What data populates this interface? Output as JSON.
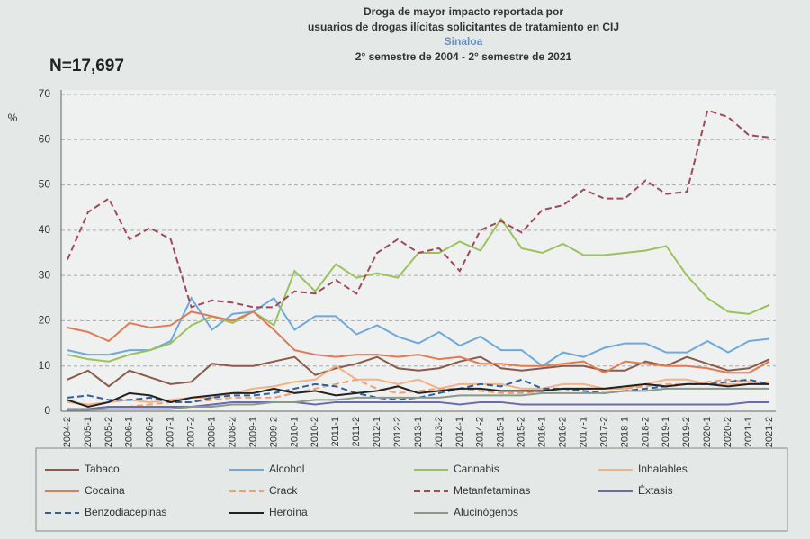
{
  "chart_data": {
    "type": "line",
    "title": [
      "Droga de mayor impacto reportada por",
      "usuarios de drogas ilícitas solicitantes de tratamiento en CIJ"
    ],
    "subtitle": "Sinaloa",
    "period": "2° semestre de 2004 - 2° semestre de 2021",
    "annotation": "N=17,697",
    "y_label": "%",
    "categories": [
      "2004-2",
      "2005-1",
      "2005-2",
      "2006-1",
      "2006-2",
      "2007-1",
      "2007-2",
      "2008-1",
      "2008-2",
      "2009-1",
      "2009-2",
      "2010-1",
      "2010-2",
      "2011-1",
      "2011-2",
      "2012-1",
      "2012-2",
      "2013-1",
      "2013-2",
      "2014-1",
      "2014-2",
      "2015-1",
      "2015-2",
      "2016-1",
      "2016-2",
      "2017-1",
      "2017-2",
      "2018-1",
      "2018-2",
      "2019-1",
      "2019-2",
      "2020-1",
      "2020-2",
      "2021-1",
      "2021-2"
    ],
    "ylim": [
      0,
      70
    ],
    "yticks": [
      0,
      10,
      20,
      30,
      40,
      50,
      60,
      70
    ],
    "grid": true,
    "series": [
      {
        "name": "Tabaco",
        "color": "#8b5a4a",
        "dash": false,
        "values": [
          7,
          9,
          5.5,
          9,
          7.5,
          6,
          6.5,
          10.5,
          10,
          10,
          11,
          12,
          8,
          9.5,
          10.5,
          12,
          9.5,
          9,
          9.5,
          11,
          12,
          9.5,
          9,
          9.5,
          10,
          10,
          9,
          9,
          11,
          10,
          12,
          10.5,
          9,
          9.5,
          11.5
        ]
      },
      {
        "name": "Alcohol",
        "color": "#6fa8dc",
        "dash": false,
        "values": [
          13.5,
          12.5,
          12.5,
          13.5,
          13.5,
          15.5,
          25,
          18,
          21.5,
          22,
          25,
          18,
          21,
          21,
          17,
          19,
          16.5,
          15,
          17.5,
          14.5,
          16.5,
          13.5,
          13.5,
          10,
          13,
          12,
          14,
          15,
          15,
          13,
          13,
          15.5,
          13,
          15.5,
          16
        ]
      },
      {
        "name": "Cannabis",
        "color": "#9bc25a",
        "dash": false,
        "values": [
          12.5,
          11.5,
          11,
          12.5,
          13.5,
          15,
          19,
          21,
          19.5,
          22,
          19,
          31,
          26.5,
          32.5,
          29.5,
          30.5,
          29.5,
          35,
          35,
          37.5,
          35.5,
          42.5,
          36,
          35,
          37,
          34.5,
          34.5,
          35,
          35.5,
          36.5,
          30,
          25,
          22,
          21.5,
          23.5
        ]
      },
      {
        "name": "Inhalables",
        "color": "#f4b183",
        "dash": false,
        "values": [
          2,
          1.5,
          2,
          2.5,
          2,
          2.5,
          3,
          3,
          4,
          5,
          5.5,
          6.5,
          7,
          10,
          7,
          7,
          6,
          7,
          5,
          6,
          6,
          6,
          5,
          5,
          6,
          6,
          5,
          5,
          6,
          7,
          7,
          6,
          6,
          6,
          6.5
        ]
      },
      {
        "name": "Cocaína",
        "color": "#e07b54",
        "dash": false,
        "values": [
          18.5,
          17.5,
          15.5,
          19.5,
          18.5,
          19,
          22,
          21,
          20,
          22,
          18,
          13.5,
          12.5,
          12,
          12.5,
          12.5,
          12,
          12.5,
          11.5,
          12,
          10.5,
          10.5,
          10,
          10,
          10.5,
          11,
          8.5,
          11,
          10.5,
          10,
          10,
          9.5,
          8.5,
          8.5,
          11
        ]
      },
      {
        "name": "Crack",
        "color": "#f0a070",
        "dash": true,
        "values": [
          0.5,
          0.5,
          1,
          1,
          1.5,
          2,
          2,
          2.5,
          3,
          3,
          3,
          4,
          5,
          6,
          7,
          5,
          4,
          4.5,
          5,
          5,
          4.5,
          4,
          4,
          4.5,
          5,
          5,
          5,
          5,
          5.5,
          6,
          6,
          6.5,
          7,
          6.5,
          6
        ]
      },
      {
        "name": "Metanfetaminas",
        "color": "#9e4a5a",
        "dash": true,
        "values": [
          33.5,
          44,
          47,
          38,
          40.5,
          38,
          23,
          24.5,
          24,
          23,
          23,
          26.5,
          26,
          29,
          26,
          35,
          38,
          35,
          36,
          31,
          40,
          42,
          39.5,
          44.5,
          45.5,
          49,
          47,
          47,
          51,
          48,
          48.5,
          66.5,
          65,
          61,
          60.5
        ]
      },
      {
        "name": "Éxtasis",
        "color": "#6a6ab0",
        "dash": false,
        "values": [
          0.5,
          0.5,
          1,
          1,
          1,
          1,
          1,
          1.5,
          2,
          2,
          2,
          2,
          1.5,
          2,
          2,
          2,
          2,
          2,
          2,
          1.5,
          2,
          2,
          1.5,
          1.5,
          1.5,
          1.5,
          1.5,
          1.5,
          1.5,
          1.5,
          1.5,
          1.5,
          1.5,
          2,
          2
        ]
      },
      {
        "name": "Benzodiacepinas",
        "color": "#2e5fa0",
        "dash": true,
        "values": [
          3,
          3.5,
          2.5,
          2.5,
          3,
          2,
          2,
          3,
          3.5,
          3.5,
          4,
          5,
          6,
          5.5,
          4,
          3,
          2.5,
          3,
          4,
          5,
          6,
          5.5,
          7,
          5,
          5,
          4.5,
          4,
          4.5,
          5,
          5.5,
          6,
          6,
          6.5,
          7,
          6
        ]
      },
      {
        "name": "Heroína",
        "color": "#222222",
        "dash": false,
        "values": [
          2.5,
          1,
          2,
          4,
          3.5,
          2,
          3,
          3.5,
          4,
          4,
          5,
          4,
          4.5,
          3.5,
          4,
          4.5,
          5.5,
          4,
          4.5,
          5,
          5,
          4.5,
          4.5,
          4.5,
          5,
          5,
          5,
          5.5,
          6,
          5.5,
          6,
          6,
          5.5,
          6,
          6
        ]
      },
      {
        "name": "Alucinógenos",
        "color": "#8a9a8a",
        "dash": false,
        "values": [
          0.3,
          0.3,
          0.5,
          0.5,
          0.5,
          0.5,
          1,
          1,
          1.5,
          1.5,
          2,
          2,
          2.5,
          2.5,
          3,
          3,
          3,
          3,
          3,
          3.5,
          3.5,
          3.5,
          3.5,
          4,
          4,
          4,
          4,
          4.5,
          4.5,
          5,
          5,
          5,
          5,
          5,
          5
        ]
      }
    ]
  }
}
